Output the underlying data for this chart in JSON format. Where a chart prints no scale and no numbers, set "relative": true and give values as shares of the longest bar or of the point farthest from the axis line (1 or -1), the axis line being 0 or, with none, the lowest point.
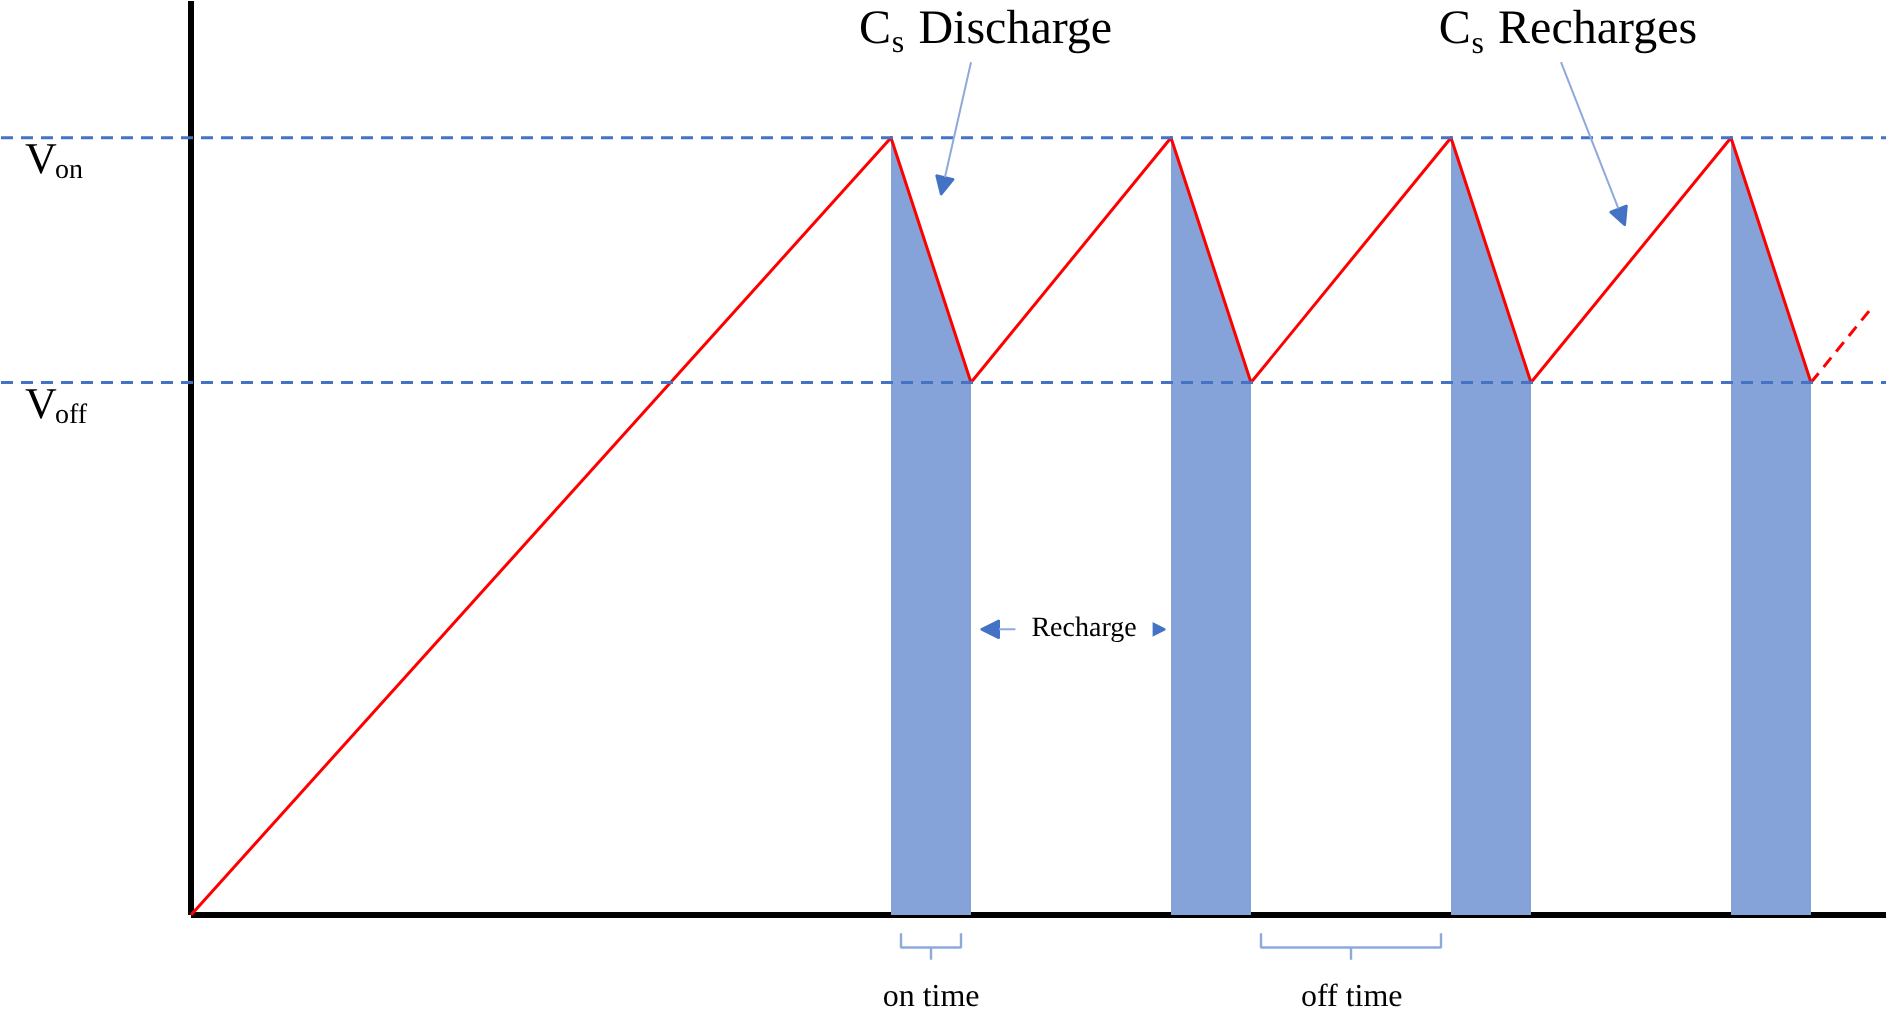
{
  "chart_data": {
    "type": "line",
    "relative": true,
    "grid": false,
    "categories": [
      null,
      null,
      null,
      null,
      null,
      null,
      null,
      null,
      null,
      null,
      null,
      null,
      null,
      null,
      null,
      null,
      null,
      null,
      null,
      null,
      null,
      null,
      null,
      null,
      null,
      null,
      null,
      null,
      null,
      null,
      null,
      null,
      null,
      null,
      null,
      null,
      null,
      null,
      null,
      null,
      null,
      null,
      null,
      null,
      null,
      null,
      null,
      null,
      null,
      null,
      null,
      null,
      null,
      null,
      null,
      null,
      null,
      null,
      null,
      null,
      null,
      null,
      null,
      null,
      null,
      null,
      null,
      null,
      null,
      null,
      null,
      null,
      null,
      null,
      null,
      null,
      null,
      null,
      null,
      null,
      null,
      null,
      null,
      null,
      null
    ],
    "series": [
      {
        "type": "area",
        "color": "#85a3d8",
        "values": [
          null,
          null,
          null,
          null,
          null,
          null,
          null,
          null,
          null,
          null,
          null,
          null,
          null,
          null,
          null,
          null,
          null,
          null,
          null,
          null,
          null,
          null,
          null,
          null,
          null,
          null,
          null,
          null,
          null,
          null,
          null,
          null,
          null,
          null,
          null,
          1,
          0.92,
          0.84,
          0.76,
          0.685,
          null,
          null,
          null,
          null,
          null,
          null,
          null,
          null,
          null,
          1,
          0.92,
          0.84,
          0.76,
          0.685,
          null,
          null,
          null,
          null,
          null,
          null,
          null,
          null,
          null,
          1,
          0.92,
          0.84,
          0.76,
          0.685,
          null,
          null,
          null,
          null,
          null,
          null,
          null,
          null,
          null,
          1,
          0.92,
          0.84,
          0.76,
          0.685,
          null,
          null,
          null
        ]
      },
      {
        "color": "#ff0000",
        "line_style": "solid",
        "values": [
          0,
          null,
          null,
          null,
          null,
          null,
          null,
          null,
          null,
          null,
          null,
          null,
          null,
          null,
          null,
          null,
          null,
          null,
          null,
          null,
          null,
          null,
          null,
          null,
          null,
          null,
          null,
          null,
          null,
          null,
          null,
          null,
          null,
          null,
          null,
          1,
          null,
          null,
          null,
          0.685,
          null,
          null,
          null,
          null,
          null,
          null,
          null,
          null,
          null,
          1,
          null,
          null,
          null,
          0.685,
          null,
          null,
          null,
          null,
          null,
          null,
          null,
          null,
          null,
          1,
          null,
          null,
          null,
          0.685,
          null,
          null,
          null,
          null,
          null,
          null,
          null,
          null,
          null,
          1,
          null,
          null,
          null,
          0.685,
          null,
          null,
          null
        ]
      },
      {
        "color": "#ff0000",
        "line_style": "dashed",
        "values": [
          null,
          null,
          null,
          null,
          null,
          null,
          null,
          null,
          null,
          null,
          null,
          null,
          null,
          null,
          null,
          null,
          null,
          null,
          null,
          null,
          null,
          null,
          null,
          null,
          null,
          null,
          null,
          null,
          null,
          null,
          null,
          null,
          null,
          null,
          null,
          null,
          null,
          null,
          null,
          null,
          null,
          null,
          null,
          null,
          null,
          null,
          null,
          null,
          null,
          null,
          null,
          null,
          null,
          null,
          null,
          null,
          null,
          null,
          null,
          null,
          null,
          null,
          null,
          null,
          null,
          null,
          null,
          null,
          null,
          null,
          null,
          null,
          null,
          null,
          null,
          null,
          null,
          null,
          null,
          null,
          null,
          0.685,
          null,
          null,
          0.78
        ]
      }
    ],
    "ref_lines": [
      {
        "axis": "y",
        "value": 1,
        "label": "V$_{on}$",
        "color": "#4472c4",
        "line_style": "dashed"
      },
      {
        "axis": "y",
        "value": 0.685,
        "label": "V$_{off}$",
        "color": "#4472c4",
        "line_style": "dashed"
      }
    ],
    "annotations": [
      "C$_{s}$ Discharge",
      "C$_{s}$ Recharges",
      "Recharge",
      "on time",
      "off time"
    ]
  }
}
